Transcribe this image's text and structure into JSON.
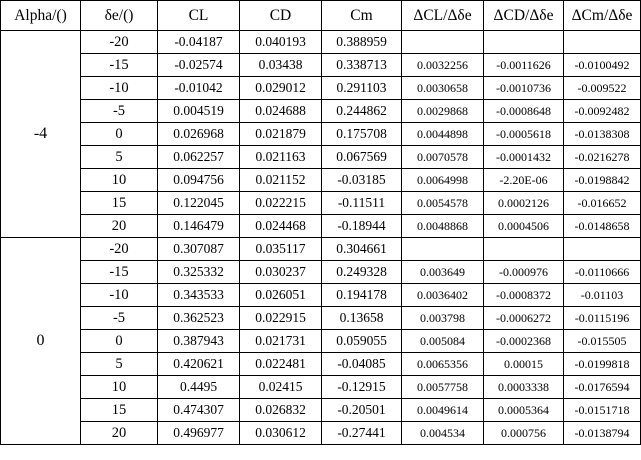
{
  "headers": [
    "Alpha/()",
    "δe/()",
    "CL",
    "CD",
    "Cm",
    "ΔCL/Δδe",
    "ΔCD/Δδe",
    "ΔCm/Δδe"
  ],
  "groups": [
    {
      "alpha": "-4",
      "rows": [
        [
          "-20",
          "-0.04187",
          "0.040193",
          "0.388959",
          "",
          "",
          ""
        ],
        [
          "-15",
          "-0.02574",
          "0.03438",
          "0.338713",
          "0.0032256",
          "-0.0011626",
          "-0.0100492"
        ],
        [
          "-10",
          "-0.01042",
          "0.029012",
          "0.291103",
          "0.0030658",
          "-0.0010736",
          "-0.009522"
        ],
        [
          "-5",
          "0.004519",
          "0.024688",
          "0.244862",
          "0.0029868",
          "-0.0008648",
          "-0.0092482"
        ],
        [
          "0",
          "0.026968",
          "0.021879",
          "0.175708",
          "0.0044898",
          "-0.0005618",
          "-0.0138308"
        ],
        [
          "5",
          "0.062257",
          "0.021163",
          "0.067569",
          "0.0070578",
          "-0.0001432",
          "-0.0216278"
        ],
        [
          "10",
          "0.094756",
          "0.021152",
          "-0.03185",
          "0.0064998",
          "-2.20E-06",
          "-0.0198842"
        ],
        [
          "15",
          "0.122045",
          "0.022215",
          "-0.11511",
          "0.0054578",
          "0.0002126",
          "-0.016652"
        ],
        [
          "20",
          "0.146479",
          "0.024468",
          "-0.18944",
          "0.0048868",
          "0.0004506",
          "-0.0148658"
        ]
      ]
    },
    {
      "alpha": "0",
      "rows": [
        [
          "-20",
          "0.307087",
          "0.035117",
          "0.304661",
          "",
          "",
          ""
        ],
        [
          "-15",
          "0.325332",
          "0.030237",
          "0.249328",
          "0.003649",
          "-0.000976",
          "-0.0110666"
        ],
        [
          "-10",
          "0.343533",
          "0.026051",
          "0.194178",
          "0.0036402",
          "-0.0008372",
          "-0.01103"
        ],
        [
          "-5",
          "0.362523",
          "0.022915",
          "0.13658",
          "0.003798",
          "-0.0006272",
          "-0.0115196"
        ],
        [
          "0",
          "0.387943",
          "0.021731",
          "0.059055",
          "0.005084",
          "-0.0002368",
          "-0.015505"
        ],
        [
          "5",
          "0.420621",
          "0.022481",
          "-0.04085",
          "0.0065356",
          "0.00015",
          "-0.0199818"
        ],
        [
          "10",
          "0.4495",
          "0.02415",
          "-0.12915",
          "0.0057758",
          "0.0003338",
          "-0.0176594"
        ],
        [
          "15",
          "0.474307",
          "0.026832",
          "-0.20501",
          "0.0049614",
          "0.0005364",
          "-0.0151718"
        ],
        [
          "20",
          "0.496977",
          "0.030612",
          "-0.27441",
          "0.004534",
          "0.000756",
          "-0.0138794"
        ]
      ]
    }
  ]
}
